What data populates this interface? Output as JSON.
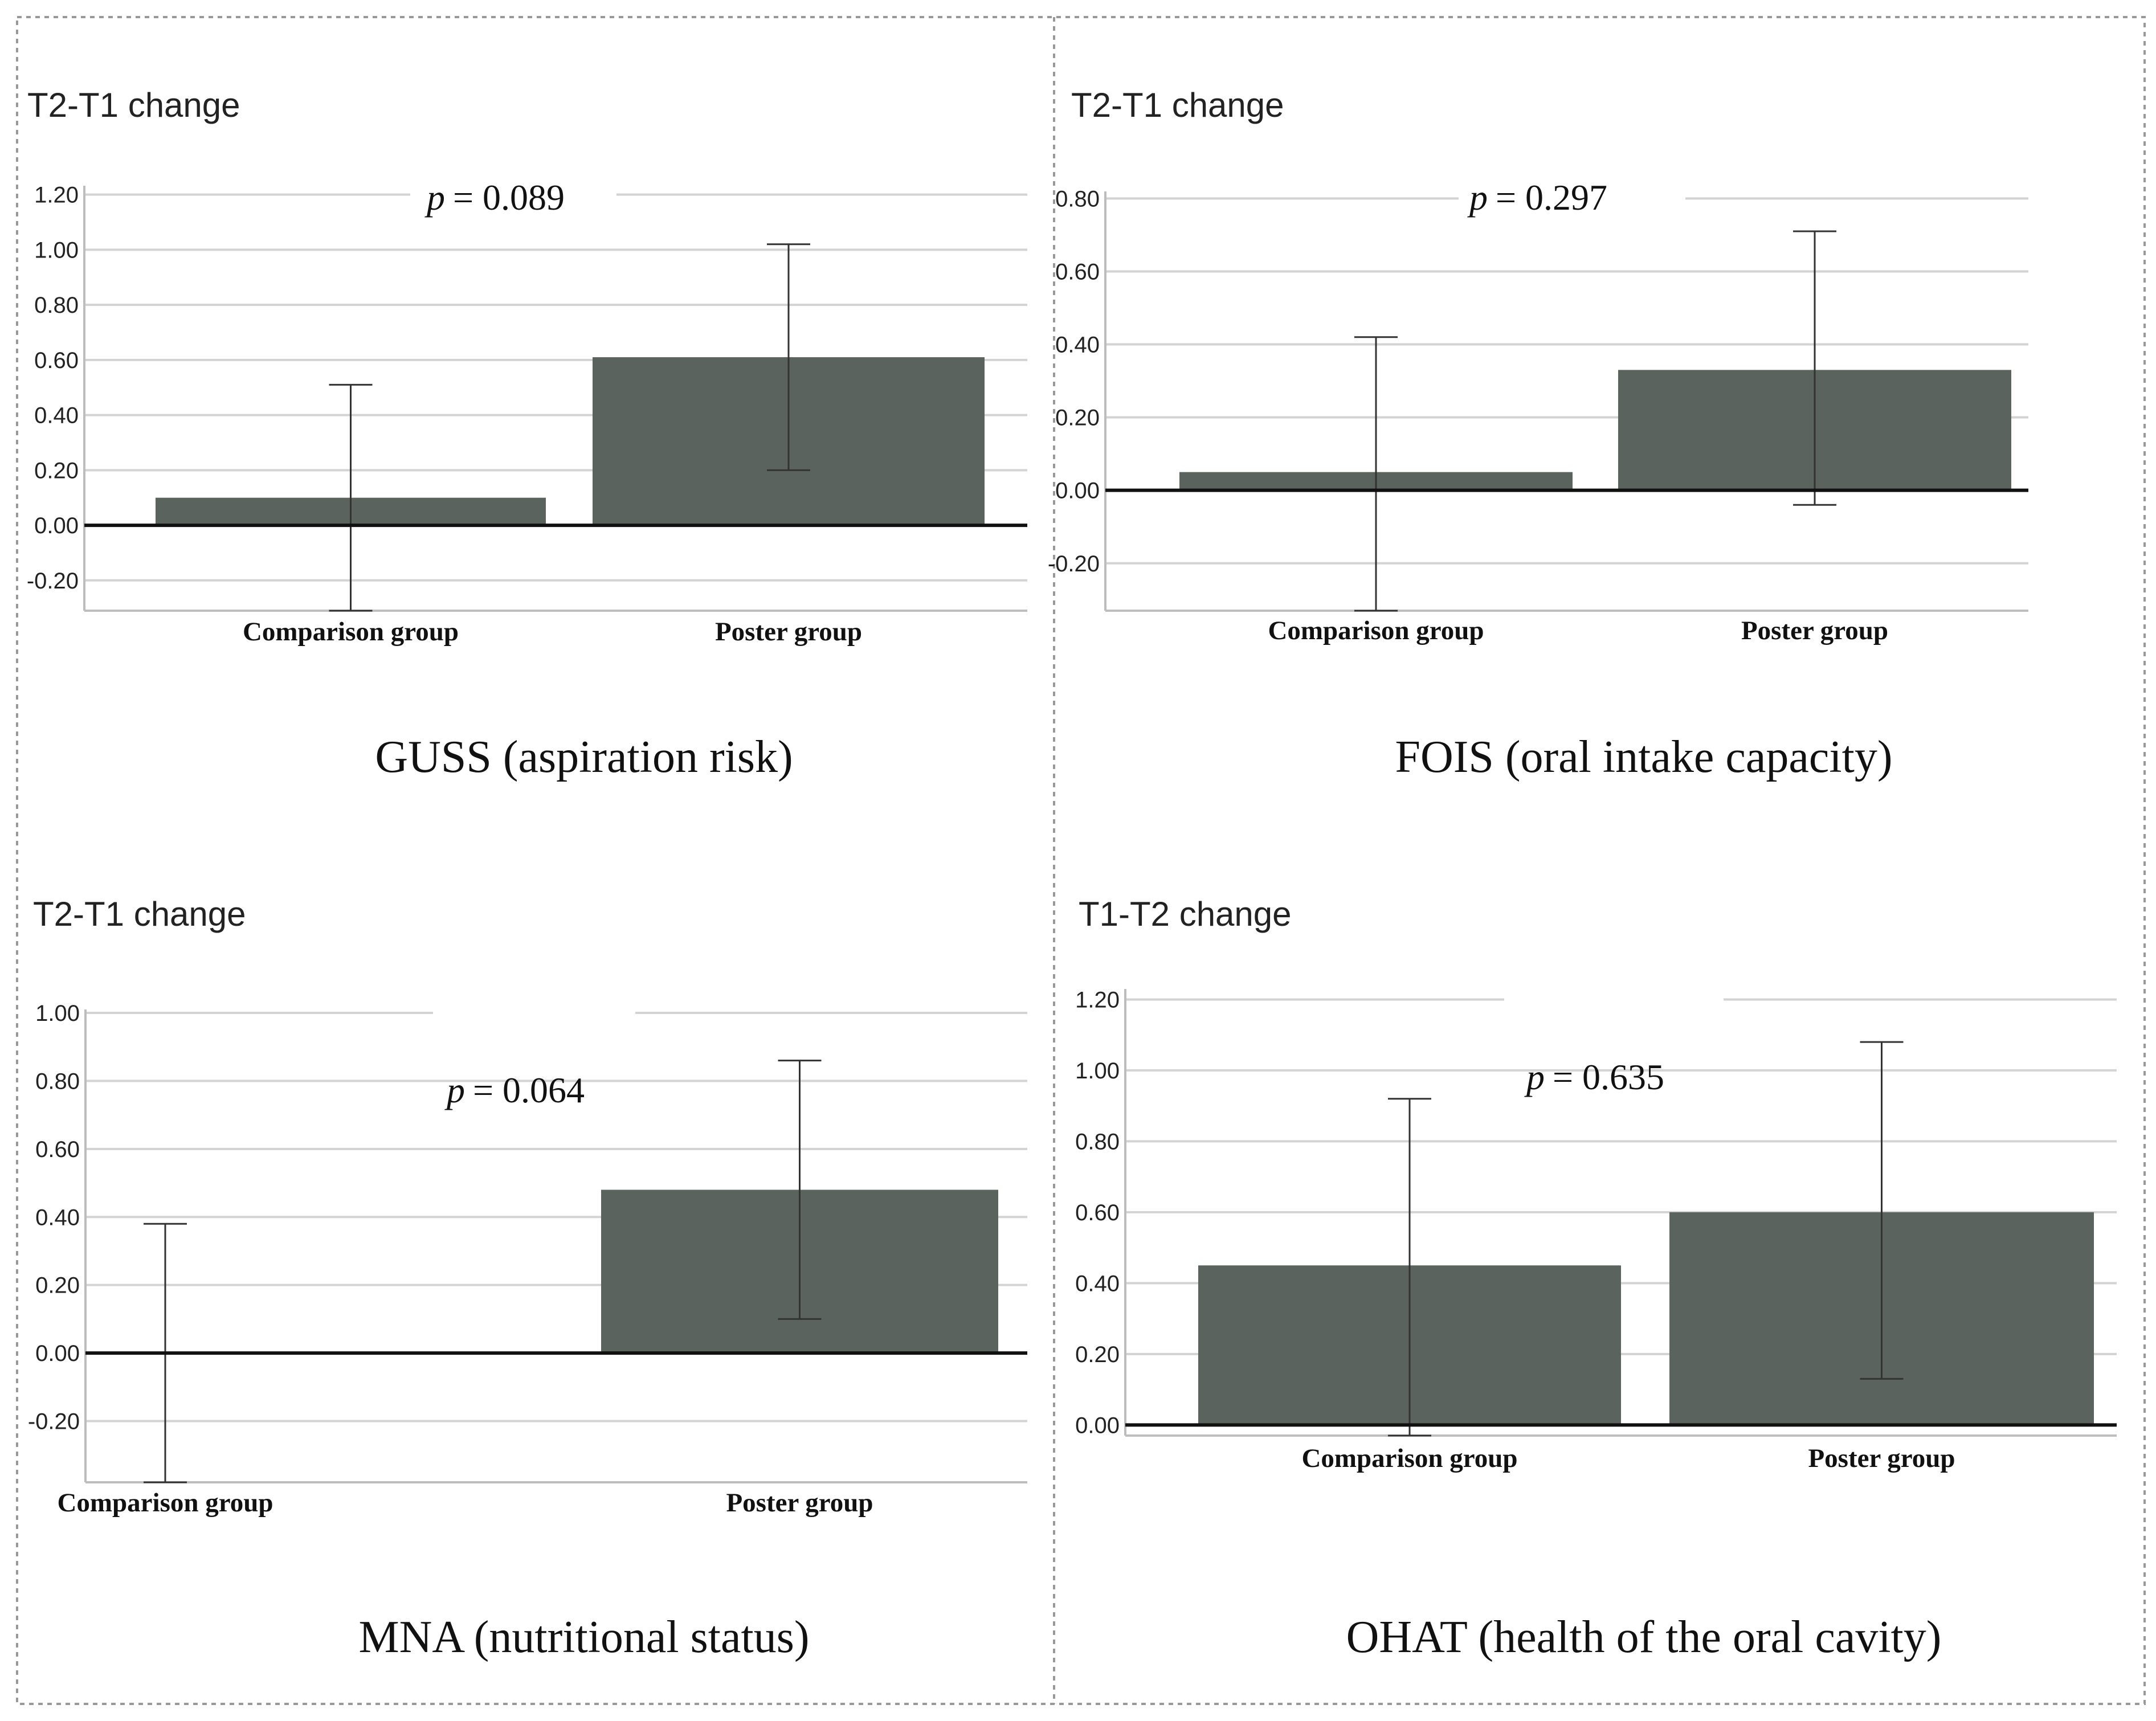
{
  "chart_data": [
    {
      "type": "bar",
      "title": "GUSS (aspiration risk)",
      "ylabel": "T2-T1 change",
      "p_label": "p",
      "p_value": "= 0.089",
      "categories": [
        "Comparison group",
        "Poster group"
      ],
      "values": [
        0.1,
        0.61
      ],
      "error_low": [
        -0.31,
        0.2
      ],
      "error_high": [
        0.51,
        1.02
      ],
      "yticks": [
        -0.2,
        0.0,
        0.2,
        0.4,
        0.6,
        0.8,
        1.0,
        1.2
      ],
      "ylim": [
        -0.31,
        1.22
      ],
      "colors": {
        "bar": "#5a635d"
      }
    },
    {
      "type": "bar",
      "title": "FOIS (oral intake capacity)",
      "ylabel": "T2-T1 change",
      "p_label": "p",
      "p_value": "= 0.297",
      "categories": [
        "Comparison group",
        "Poster group"
      ],
      "values": [
        0.05,
        0.33
      ],
      "error_low": [
        -0.33,
        -0.04
      ],
      "error_high": [
        0.42,
        0.71
      ],
      "yticks": [
        -0.2,
        0.0,
        0.2,
        0.4,
        0.6,
        0.8
      ],
      "ylim": [
        -0.33,
        0.81
      ],
      "colors": {
        "bar": "#5a635d"
      }
    },
    {
      "type": "bar",
      "title": "MNA (nutritional status)",
      "ylabel": "T2-T1 change",
      "p_label": "p",
      "p_value": "= 0.064",
      "categories": [
        "Comparison group",
        "Poster group"
      ],
      "values": [
        0.0,
        0.48
      ],
      "error_low": [
        -0.38,
        0.1
      ],
      "error_high": [
        0.38,
        0.86
      ],
      "yticks": [
        -0.2,
        0.0,
        0.2,
        0.4,
        0.6,
        0.8,
        1.0
      ],
      "ylim": [
        -0.38,
        1.0
      ],
      "colors": {
        "bar": "#5a635d"
      }
    },
    {
      "type": "bar",
      "title": "OHAT (health of the oral cavity)",
      "ylabel": "T1-T2 change",
      "p_label": "p",
      "p_value": "= 0.635",
      "categories": [
        "Comparison group",
        "Poster group"
      ],
      "values": [
        0.45,
        0.6
      ],
      "error_low": [
        -0.03,
        0.13
      ],
      "error_high": [
        0.92,
        1.08
      ],
      "yticks": [
        0.0,
        0.2,
        0.4,
        0.6,
        0.8,
        1.0,
        1.2
      ],
      "ylim": [
        -0.03,
        1.22
      ],
      "colors": {
        "bar": "#5a635d"
      }
    }
  ]
}
